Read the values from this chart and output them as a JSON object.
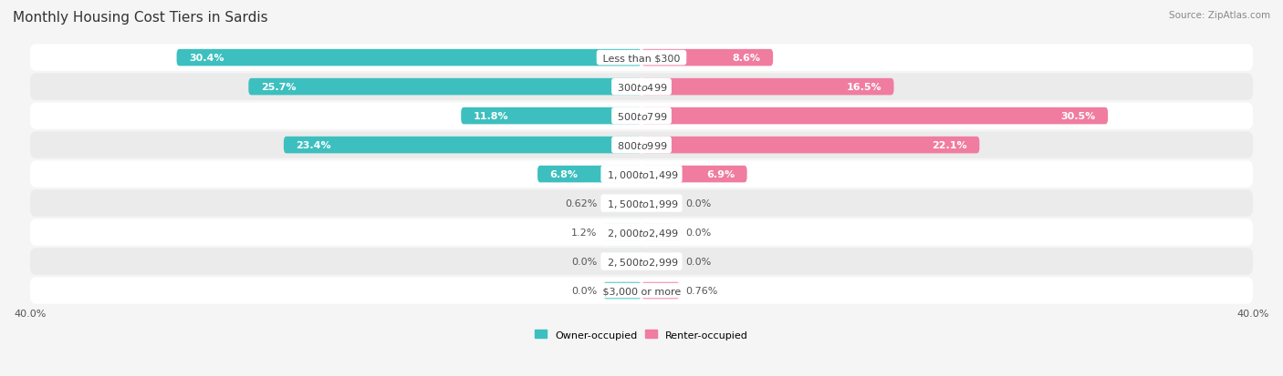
{
  "title": "Monthly Housing Cost Tiers in Sardis",
  "source": "Source: ZipAtlas.com",
  "categories": [
    "Less than $300",
    "$300 to $499",
    "$500 to $799",
    "$800 to $999",
    "$1,000 to $1,499",
    "$1,500 to $1,999",
    "$2,000 to $2,499",
    "$2,500 to $2,999",
    "$3,000 or more"
  ],
  "owner_values": [
    30.4,
    25.7,
    11.8,
    23.4,
    6.8,
    0.62,
    1.2,
    0.0,
    0.0
  ],
  "renter_values": [
    8.6,
    16.5,
    30.5,
    22.1,
    6.9,
    0.0,
    0.0,
    0.0,
    0.76
  ],
  "owner_color": "#3dbfbf",
  "renter_color": "#f07ca0",
  "owner_label": "Owner-occupied",
  "renter_label": "Renter-occupied",
  "axis_max": 40.0,
  "bar_height": 0.58,
  "min_bar": 2.5,
  "background_color": "#f5f5f5",
  "row_bg_odd": "#ffffff",
  "row_bg_even": "#ebebeb",
  "title_fontsize": 11,
  "cat_fontsize": 8,
  "val_fontsize": 8,
  "tick_fontsize": 8,
  "source_fontsize": 7.5
}
